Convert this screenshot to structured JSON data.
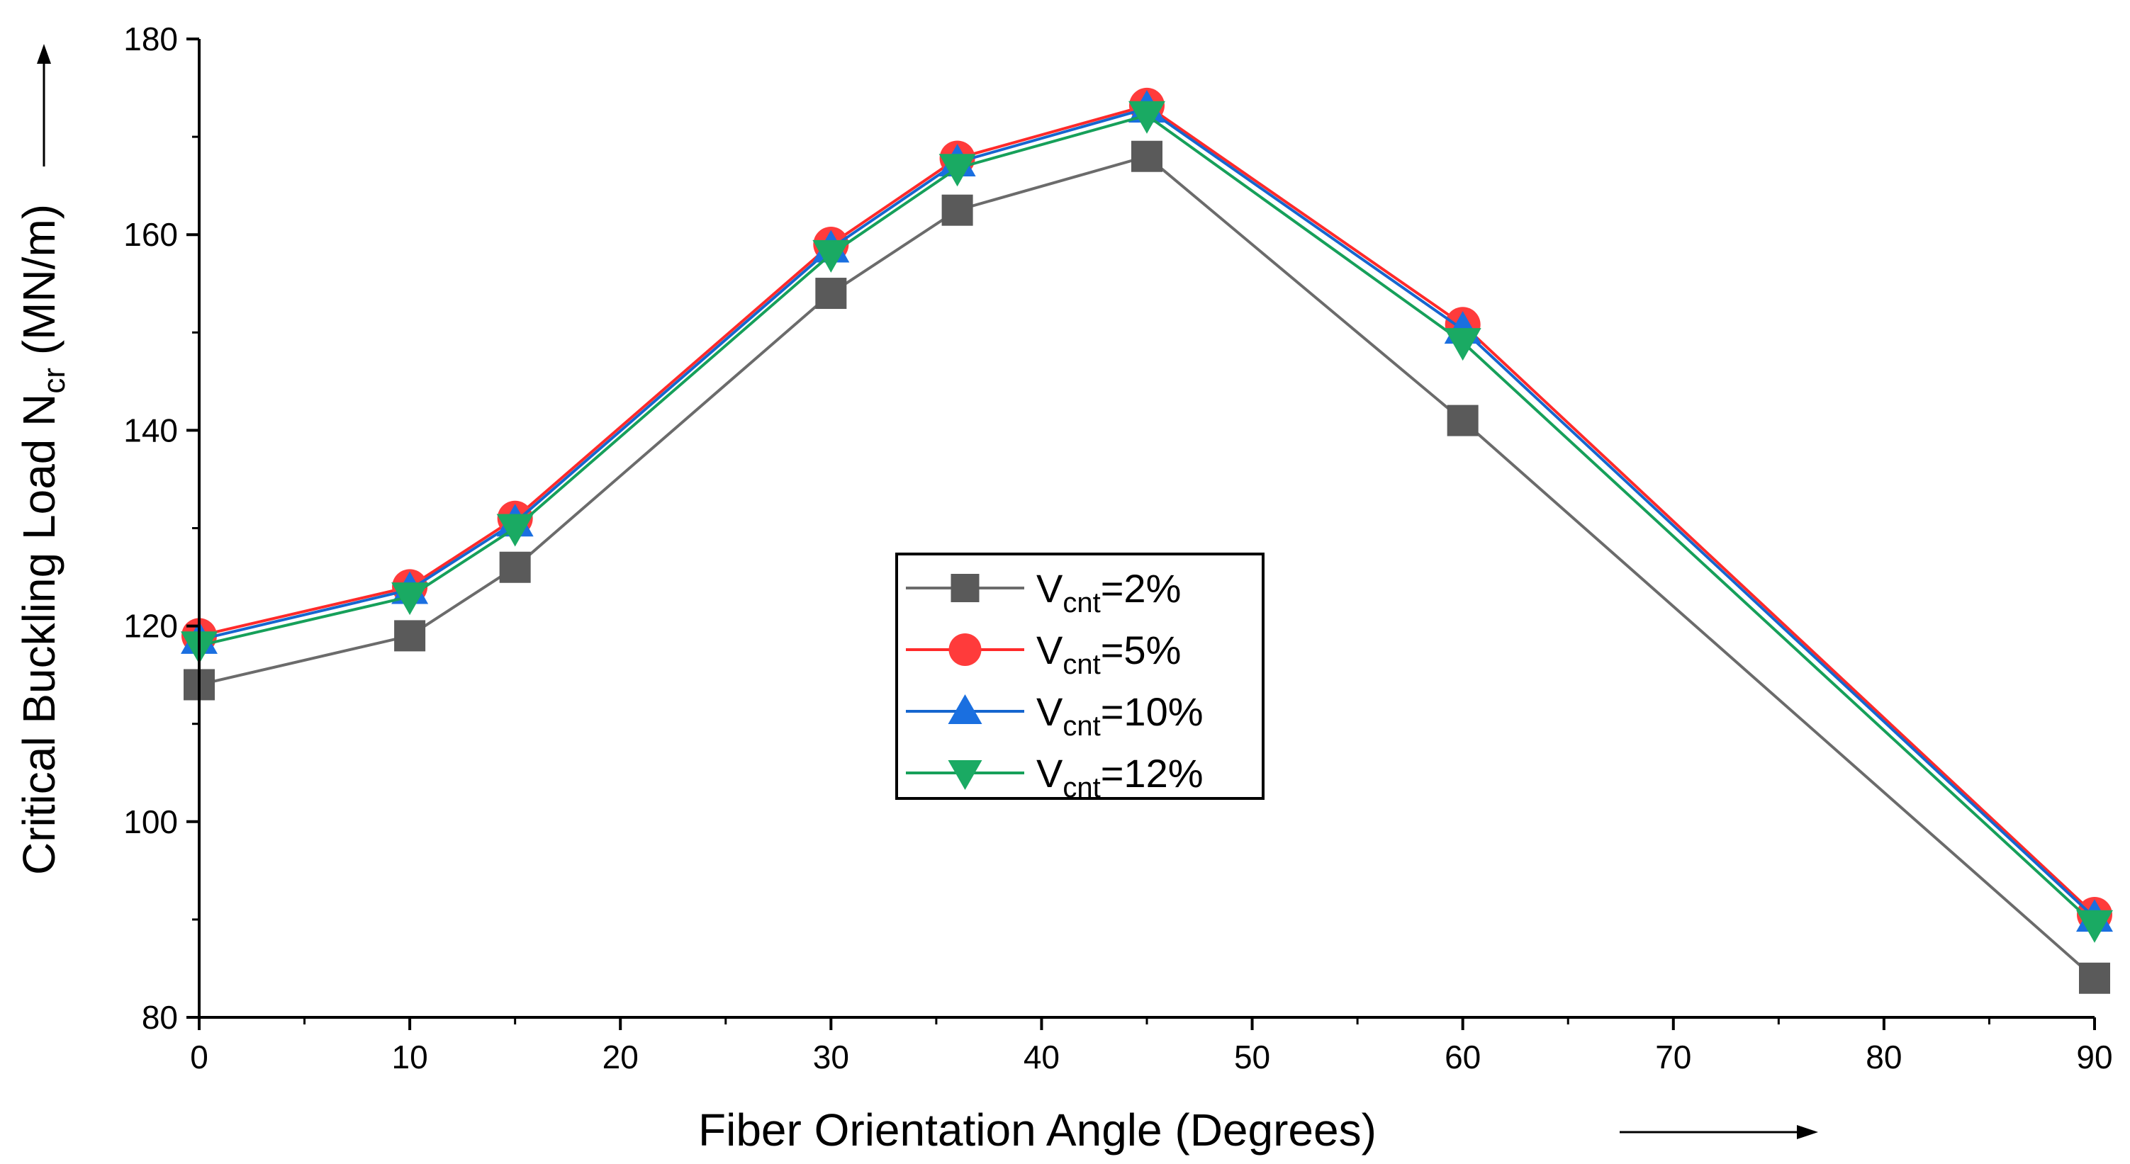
{
  "chart_data": {
    "type": "line",
    "title": "",
    "xlabel": "Fiber Orientation Angle (Degrees)",
    "ylabel": "Critical Buckling Load N",
    "ylabel_sub": "cr",
    "ylabel_unit": " (MN/m)",
    "xlim": [
      0,
      90
    ],
    "ylim": [
      80,
      180
    ],
    "x_ticks": [
      0,
      10,
      20,
      30,
      40,
      50,
      60,
      70,
      80,
      90
    ],
    "y_ticks": [
      80,
      100,
      120,
      140,
      160,
      180
    ],
    "grid": false,
    "legend_position": "center",
    "x": [
      0,
      10,
      15,
      30,
      36,
      45,
      60,
      90
    ],
    "series": [
      {
        "name": "Vcnt=2%",
        "label_main": "V",
        "label_sub": "cnt",
        "label_rest": "=2%",
        "marker": "square",
        "color": "#6b6b6b",
        "marker_color": "#5a5a5a",
        "values": [
          114,
          119,
          126,
          154,
          162.5,
          168,
          141,
          84
        ]
      },
      {
        "name": "Vcnt=5%",
        "label_main": "V",
        "label_sub": "cnt",
        "label_rest": "=5%",
        "marker": "circle",
        "color": "#ff2a2a",
        "marker_color": "#ff3b3b",
        "values": [
          119,
          124,
          131,
          159,
          167.8,
          173.2,
          150.8,
          90.5
        ]
      },
      {
        "name": "Vcnt=10%",
        "label_main": "V",
        "label_sub": "cnt",
        "label_rest": "=10%",
        "marker": "triangle-up",
        "color": "#1666cf",
        "marker_color": "#1a6fe0",
        "values": [
          118.6,
          123.7,
          130.6,
          158.6,
          167.4,
          172.9,
          150.3,
          90.2
        ]
      },
      {
        "name": "Vcnt=12%",
        "label_main": "V",
        "label_sub": "cnt",
        "label_rest": "=12%",
        "marker": "triangle-down",
        "color": "#16a05a",
        "marker_color": "#1aaa63",
        "values": [
          118,
          123,
          130,
          158,
          166.8,
          172.2,
          149,
          89.5
        ]
      }
    ]
  }
}
